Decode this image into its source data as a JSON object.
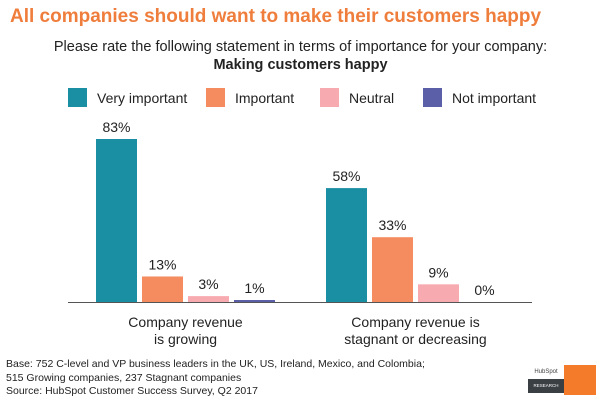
{
  "title": "All companies should want to make their customers happy",
  "subtitle": "Please rate the following statement in terms of importance for your company:",
  "subtitle_bold": "Making customers happy",
  "chart_data": {
    "type": "bar",
    "categories": [
      "Company revenue is growing",
      "Company revenue is stagnant or decreasing"
    ],
    "category_lines": [
      [
        "Company revenue",
        "is growing"
      ],
      [
        "Company revenue is",
        "stagnant or decreasing"
      ]
    ],
    "series": [
      {
        "name": "Very important",
        "color": "#1a8fa3",
        "values": [
          83,
          58
        ]
      },
      {
        "name": "Important",
        "color": "#f58c5f",
        "values": [
          13,
          33
        ]
      },
      {
        "name": "Neutral",
        "color": "#f7abb0",
        "values": [
          3,
          9
        ]
      },
      {
        "name": "Not important",
        "color": "#5a5fa8",
        "values": [
          1,
          0
        ]
      }
    ],
    "value_labels": [
      [
        "83%",
        "13%",
        "3%",
        "1%"
      ],
      [
        "58%",
        "33%",
        "9%",
        "0%"
      ]
    ],
    "ylim": [
      0,
      100
    ],
    "grid": false,
    "legend": "top"
  },
  "footer": [
    "Base: 752 C-level and VP business leaders in the UK, US, Ireland, Mexico, and Colombia;",
    "515 Growing companies, 237 Stagnant companies",
    "Source: HubSpot Customer Success Survey, Q2 2017"
  ],
  "logo": {
    "brand": "HubSpot",
    "label": "RESEARCH"
  }
}
